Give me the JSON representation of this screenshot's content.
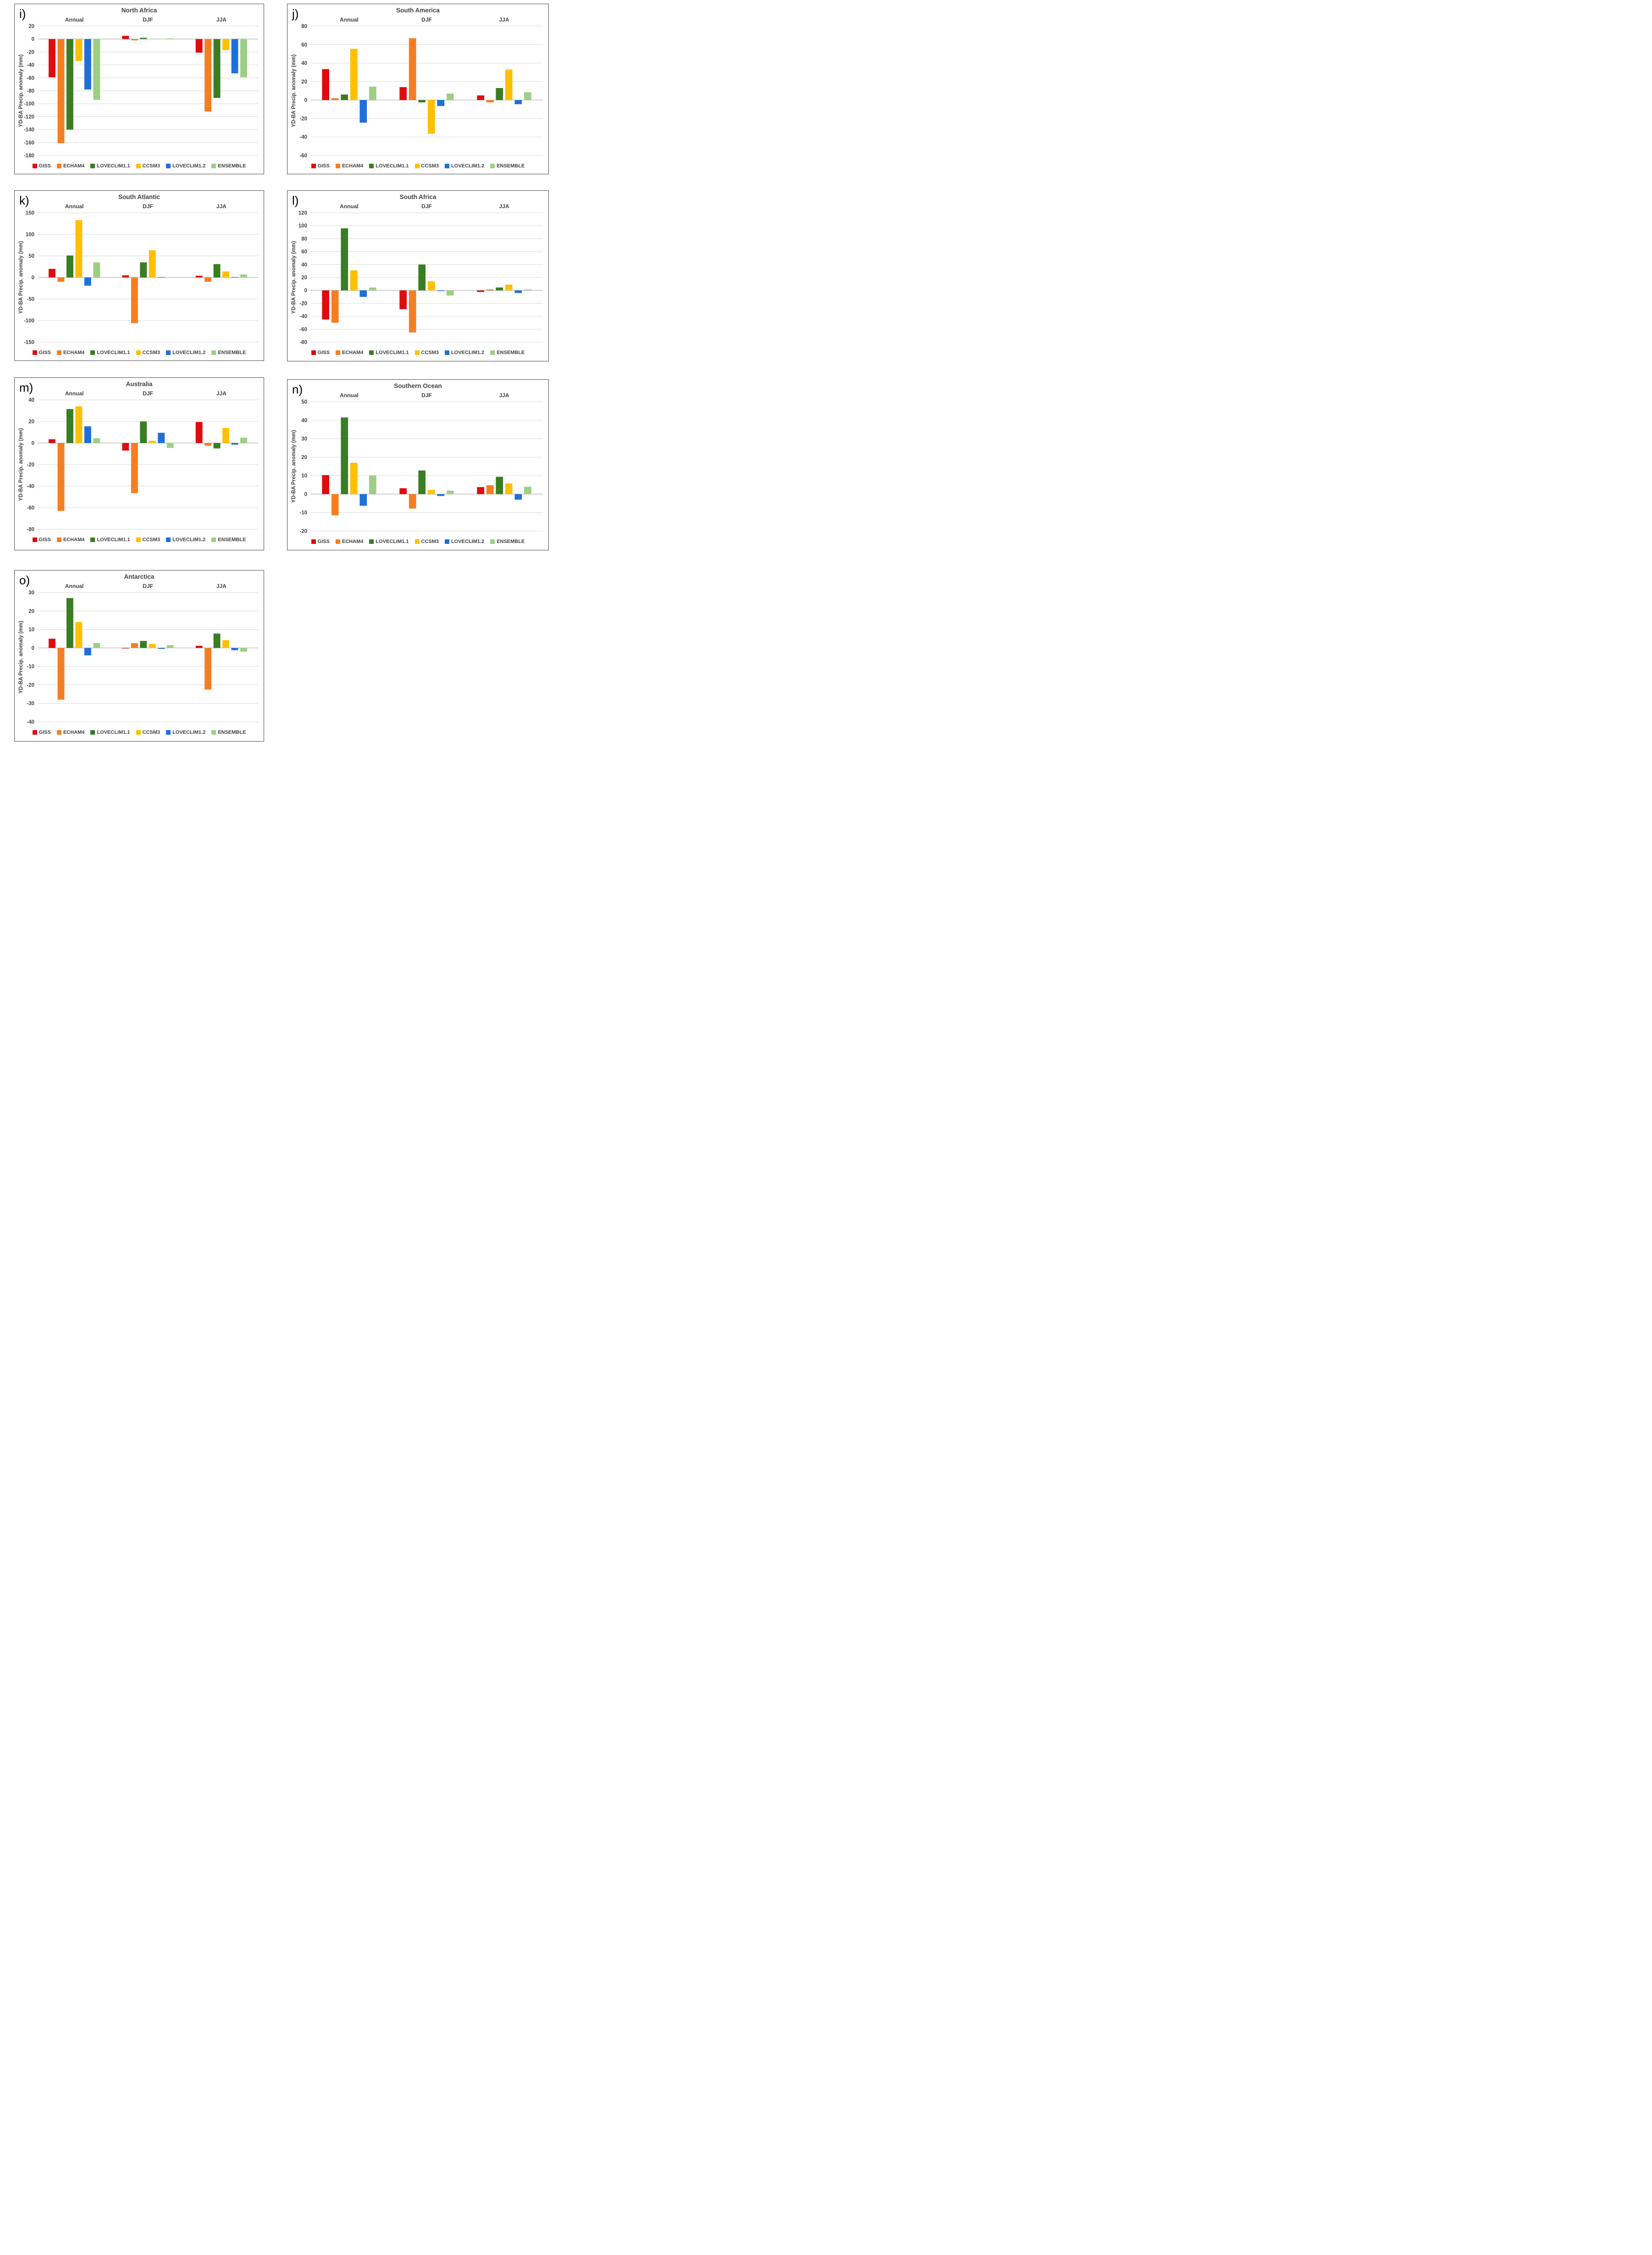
{
  "figure": {
    "ylabel": "YD-BA Precip. anomaly (mm)",
    "groups": [
      "Annual",
      "DJF",
      "JJA"
    ],
    "legend": [
      "GISS",
      "ECHAM4",
      "LOVECLIM1.1",
      "CCSM3",
      "LOVECLIM1.2",
      "ENSEMBLE"
    ],
    "palette": {
      "GISS": "#e00b0e",
      "ECHAM4": "#f57e21",
      "LOVECLIM1.1": "#3a7d23",
      "CCSM3": "#fec000",
      "LOVECLIM1.2": "#1e6fd9",
      "ENSEMBLE": "#9ccf83"
    },
    "gridline_color": "#d9d9d9",
    "zeroline_color": "#bfbfbf",
    "text_color": "#404040"
  },
  "chart_data": [
    {
      "type": "bar",
      "panel_letter": "i)",
      "title": "North Africa",
      "categories": [
        "Annual",
        "DJF",
        "JJA"
      ],
      "ylabel": "YD-BA Precip. anomaly (mm)",
      "ylim": [
        -180,
        20
      ],
      "ytick_step": 20,
      "grid": true,
      "legend_position": "bottom",
      "series": [
        {
          "name": "GISS",
          "values": [
            -59,
            5,
            -21
          ]
        },
        {
          "name": "ECHAM4",
          "values": [
            -161,
            -2,
            -112
          ]
        },
        {
          "name": "LOVECLIM1.1",
          "values": [
            -140,
            2,
            -91
          ]
        },
        {
          "name": "CCSM3",
          "values": [
            -34,
            0,
            -17
          ]
        },
        {
          "name": "LOVECLIM1.2",
          "values": [
            -78,
            0,
            -53
          ]
        },
        {
          "name": "ENSEMBLE",
          "values": [
            -94,
            1,
            -59
          ]
        }
      ]
    },
    {
      "type": "bar",
      "panel_letter": "j)",
      "title": "South America",
      "categories": [
        "Annual",
        "DJF",
        "JJA"
      ],
      "ylabel": "YD-BA Precip. anomaly (mm)",
      "ylim": [
        -60,
        80
      ],
      "ytick_step": 20,
      "grid": true,
      "legend_position": "bottom",
      "series": [
        {
          "name": "GISS",
          "values": [
            33.5,
            14,
            5
          ]
        },
        {
          "name": "ECHAM4",
          "values": [
            2,
            67,
            -2.5
          ]
        },
        {
          "name": "LOVECLIM1.1",
          "values": [
            6,
            -2.5,
            13
          ]
        },
        {
          "name": "CCSM3",
          "values": [
            55.5,
            -36.5,
            33
          ]
        },
        {
          "name": "LOVECLIM1.2",
          "values": [
            -24.5,
            -6.5,
            -4.5
          ]
        },
        {
          "name": "ENSEMBLE",
          "values": [
            14.5,
            7,
            8.5
          ]
        }
      ]
    },
    {
      "type": "bar",
      "panel_letter": "k)",
      "title": "South Atlantic",
      "categories": [
        "Annual",
        "DJF",
        "JJA"
      ],
      "ylabel": "YD-BA Precip. anomaly (mm)",
      "ylim": [
        -150,
        150
      ],
      "ytick_step": 50,
      "grid": true,
      "legend_position": "bottom",
      "series": [
        {
          "name": "GISS",
          "values": [
            20,
            5,
            4
          ]
        },
        {
          "name": "ECHAM4",
          "values": [
            -10,
            -106,
            -10
          ]
        },
        {
          "name": "LOVECLIM1.1",
          "values": [
            51,
            35,
            31
          ]
        },
        {
          "name": "CCSM3",
          "values": [
            133,
            63,
            14
          ]
        },
        {
          "name": "LOVECLIM1.2",
          "values": [
            -19,
            1,
            1
          ]
        },
        {
          "name": "ENSEMBLE",
          "values": [
            35,
            0,
            7
          ]
        }
      ]
    },
    {
      "type": "bar",
      "panel_letter": "l)",
      "title": "South Africa",
      "categories": [
        "Annual",
        "DJF",
        "JJA"
      ],
      "ylabel": "YD-BA Precip. anomaly (mm)",
      "ylim": [
        -80,
        120
      ],
      "ytick_step": 20,
      "grid": true,
      "legend_position": "bottom",
      "series": [
        {
          "name": "GISS",
          "values": [
            -45,
            -29,
            -2.5
          ]
        },
        {
          "name": "ECHAM4",
          "values": [
            -50,
            -65,
            1.5
          ]
        },
        {
          "name": "LOVECLIM1.1",
          "values": [
            96,
            40,
            4.5
          ]
        },
        {
          "name": "CCSM3",
          "values": [
            31,
            14,
            9
          ]
        },
        {
          "name": "LOVECLIM1.2",
          "values": [
            -10,
            -1,
            -4
          ]
        },
        {
          "name": "ENSEMBLE",
          "values": [
            4.5,
            -8,
            1.5
          ]
        }
      ]
    },
    {
      "type": "bar",
      "panel_letter": "m)",
      "title": "Australia",
      "categories": [
        "Annual",
        "DJF",
        "JJA"
      ],
      "ylabel": "YD-BA Precip. anomaly (mm)",
      "ylim": [
        -80,
        40
      ],
      "ytick_step": 20,
      "grid": true,
      "legend_position": "bottom",
      "series": [
        {
          "name": "GISS",
          "values": [
            3.5,
            -7,
            19.5
          ]
        },
        {
          "name": "ECHAM4",
          "values": [
            -63,
            -46.5,
            -2.5
          ]
        },
        {
          "name": "LOVECLIM1.1",
          "values": [
            31.5,
            20,
            -5
          ]
        },
        {
          "name": "CCSM3",
          "values": [
            34,
            2,
            14
          ]
        },
        {
          "name": "LOVECLIM1.2",
          "values": [
            15.5,
            9.5,
            -1.5
          ]
        },
        {
          "name": "ENSEMBLE",
          "values": [
            4.5,
            -4.5,
            5
          ]
        }
      ]
    },
    {
      "type": "bar",
      "panel_letter": "n)",
      "title": "Southern Ocean",
      "categories": [
        "Annual",
        "DJF",
        "JJA"
      ],
      "ylabel": "YD-BA Precip. anomaly (mm)",
      "ylim": [
        -20,
        50
      ],
      "ytick_step": 10,
      "grid": true,
      "legend_position": "bottom",
      "series": [
        {
          "name": "GISS",
          "values": [
            10.3,
            3.2,
            3.8
          ]
        },
        {
          "name": "ECHAM4",
          "values": [
            -11.5,
            -7.8,
            4.8
          ]
        },
        {
          "name": "LOVECLIM1.1",
          "values": [
            41.5,
            12.8,
            9.4
          ]
        },
        {
          "name": "CCSM3",
          "values": [
            17,
            2.3,
            5.8
          ]
        },
        {
          "name": "LOVECLIM1.2",
          "values": [
            -6.3,
            -1,
            -3
          ]
        },
        {
          "name": "ENSEMBLE",
          "values": [
            10.2,
            1.9,
            4
          ]
        }
      ]
    },
    {
      "type": "bar",
      "panel_letter": "o)",
      "title": "Antarctica",
      "categories": [
        "Annual",
        "DJF",
        "JJA"
      ],
      "ylabel": "YD-BA Precip. anomaly (mm)",
      "ylim": [
        -40,
        30
      ],
      "ytick_step": 10,
      "grid": true,
      "legend_position": "bottom",
      "series": [
        {
          "name": "GISS",
          "values": [
            5,
            -0.3,
            1.2
          ]
        },
        {
          "name": "ECHAM4",
          "values": [
            -28,
            2.6,
            -22.5
          ]
        },
        {
          "name": "LOVECLIM1.1",
          "values": [
            27,
            3.8,
            7.8
          ]
        },
        {
          "name": "CCSM3",
          "values": [
            14,
            2.2,
            4.2
          ]
        },
        {
          "name": "LOVECLIM1.2",
          "values": [
            -4,
            -0.5,
            -1.2
          ]
        },
        {
          "name": "ENSEMBLE",
          "values": [
            2.7,
            1.5,
            -2
          ]
        }
      ]
    }
  ]
}
